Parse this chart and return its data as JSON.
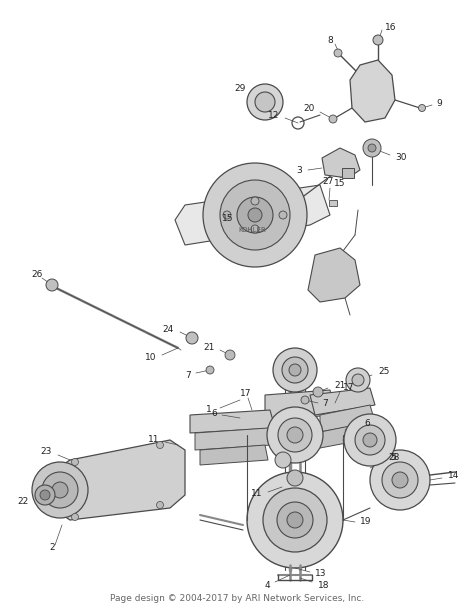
{
  "footer_text": "Page design © 2004-2017 by ARI Network Services, Inc.",
  "footer_fontsize": 6.5,
  "bg_color": "#ffffff",
  "line_color": "#4a4a4a",
  "text_color": "#222222",
  "fig_width": 4.74,
  "fig_height": 6.13,
  "dpi": 100
}
